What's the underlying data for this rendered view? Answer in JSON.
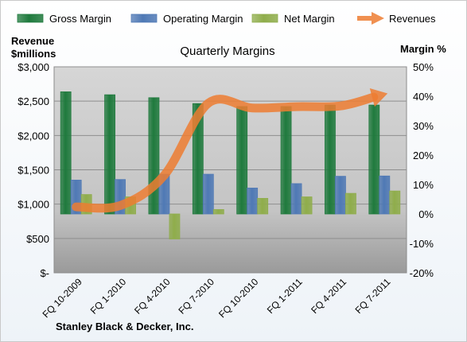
{
  "chart_data": {
    "type": "bar",
    "title": "Quarterly Margins",
    "left_axis_title": [
      "Revenue",
      "$millions"
    ],
    "right_axis_title": "Margin %",
    "company": "Stanley Black & Decker, Inc.",
    "categories": [
      "FQ 10-2009",
      "FQ 1-2010",
      "FQ 4-2010",
      "FQ 7-2010",
      "FQ 10-2010",
      "FQ 1-2011",
      "FQ 4-2011",
      "FQ 7-2011"
    ],
    "left_ticks": [
      "$-",
      "$500",
      "$1,000",
      "$1,500",
      "$2,000",
      "$2,500",
      "$3,000"
    ],
    "right_ticks": [
      "-20%",
      "-10%",
      "0%",
      "10%",
      "20%",
      "30%",
      "40%",
      "50%"
    ],
    "ylim_left": [
      0,
      3000
    ],
    "ylim_right": [
      -20,
      50
    ],
    "series": [
      {
        "name": "Gross Margin",
        "axis": "right",
        "type": "bar",
        "color": "#1f7a3d",
        "values": [
          41.5,
          40.5,
          39.5,
          37.5,
          36.5,
          36.5,
          37,
          37
        ]
      },
      {
        "name": "Operating Margin",
        "axis": "right",
        "type": "bar",
        "color": "#4f79b5",
        "values": [
          11.5,
          11.7,
          13.5,
          13.5,
          8.8,
          10.3,
          12.8,
          12.9
        ]
      },
      {
        "name": "Net Margin",
        "axis": "right",
        "type": "bar",
        "color": "#8fad4b",
        "values": [
          6.6,
          5.8,
          -8.5,
          1.5,
          5.3,
          5.8,
          7,
          7.8
        ]
      },
      {
        "name": "Revenues",
        "axis": "left",
        "type": "line",
        "color": "#ed7d31",
        "values": [
          960,
          980,
          1420,
          2470,
          2400,
          2420,
          2430,
          2600
        ]
      }
    ],
    "grid": true,
    "legend_position": "top"
  }
}
